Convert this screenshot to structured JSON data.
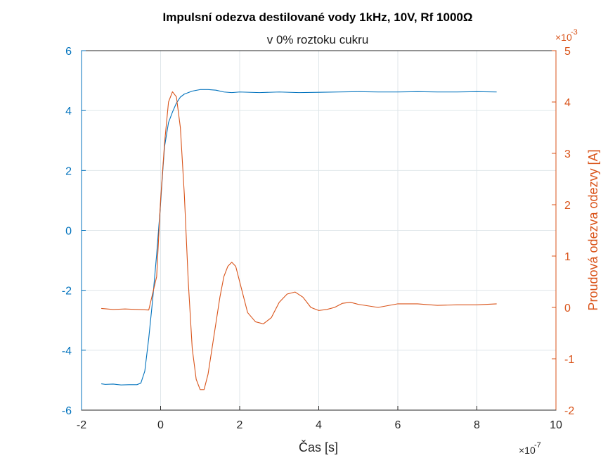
{
  "chart_data": {
    "type": "line",
    "title": "Impulsní odezva destilované vody 1kHz, 10V, Rf 1000Ω",
    "subtitle": "v 0% roztoku cukru",
    "xlabel": "Čas [s]",
    "ylabel_left": "",
    "ylabel_right": "Proudová odezva odezvy [A]",
    "x_exponent_label": "×10",
    "x_exponent_power": "-7",
    "y_right_exponent_label": "×10",
    "y_right_exponent_power": "-3",
    "xlim": [
      -2e-07,
      1e-06
    ],
    "ylim_left": [
      -6,
      6
    ],
    "ylim_right": [
      -0.002,
      0.005
    ],
    "x_tick_labels": [
      "-2",
      "0",
      "2",
      "4",
      "6",
      "8",
      "10"
    ],
    "y_left_tick_labels": [
      "-6",
      "-4",
      "-2",
      "0",
      "2",
      "4",
      "6"
    ],
    "y_right_tick_labels": [
      "-2",
      "-1",
      "0",
      "1",
      "2",
      "3",
      "4",
      "5"
    ],
    "grid": true,
    "colors": {
      "left": "#0072bd",
      "right": "#d95319"
    },
    "series": [
      {
        "axis": "left",
        "color": "#0072bd",
        "x": [
          -1.5e-07,
          -1.4e-07,
          -1.2e-07,
          -1e-07,
          -8e-08,
          -6e-08,
          -5e-08,
          -4e-08,
          -3e-08,
          -2e-08,
          -1e-08,
          0.0,
          5e-09,
          1e-08,
          2e-08,
          3e-08,
          4e-08,
          5e-08,
          6e-08,
          8e-08,
          1e-07,
          1.2e-07,
          1.4e-07,
          1.6e-07,
          1.8e-07,
          2e-07,
          2.5e-07,
          3e-07,
          3.5e-07,
          4e-07,
          4.5e-07,
          5e-07,
          5.5e-07,
          6e-07,
          6.5e-07,
          7e-07,
          7.5e-07,
          8e-07,
          8.5e-07
        ],
        "y": [
          -5.12,
          -5.14,
          -5.13,
          -5.16,
          -5.15,
          -5.15,
          -5.1,
          -4.7,
          -3.6,
          -2.3,
          -0.8,
          0.9,
          1.9,
          2.8,
          3.6,
          3.95,
          4.25,
          4.45,
          4.55,
          4.65,
          4.7,
          4.7,
          4.68,
          4.62,
          4.6,
          4.62,
          4.6,
          4.62,
          4.6,
          4.61,
          4.62,
          4.63,
          4.62,
          4.62,
          4.63,
          4.62,
          4.62,
          4.63,
          4.62
        ]
      },
      {
        "axis": "right",
        "color": "#d95319",
        "x": [
          -1.5e-07,
          -1.2e-07,
          -9e-08,
          -6e-08,
          -3e-08,
          -1e-08,
          0.0,
          1e-08,
          2e-08,
          3e-08,
          4e-08,
          5e-08,
          6e-08,
          7e-08,
          8e-08,
          9e-08,
          1e-07,
          1.1e-07,
          1.2e-07,
          1.3e-07,
          1.4e-07,
          1.5e-07,
          1.6e-07,
          1.7e-07,
          1.8e-07,
          1.9e-07,
          2e-07,
          2.2e-07,
          2.4e-07,
          2.6e-07,
          2.8e-07,
          3e-07,
          3.2e-07,
          3.4e-07,
          3.6e-07,
          3.8e-07,
          4e-07,
          4.2e-07,
          4.4e-07,
          4.6e-07,
          4.8e-07,
          5e-07,
          5.5e-07,
          6e-07,
          6.5e-07,
          7e-07,
          7.5e-07,
          8e-07,
          8.5e-07
        ],
        "y": [
          -2e-05,
          -4e-05,
          -3e-05,
          -4e-05,
          -5e-05,
          0.0006,
          0.0021,
          0.0032,
          0.004,
          0.0042,
          0.0041,
          0.0035,
          0.0022,
          0.0005,
          -0.0008,
          -0.0014,
          -0.0016,
          -0.0016,
          -0.0013,
          -0.0008,
          -0.0003,
          0.0002,
          0.0006,
          0.0008,
          0.00088,
          0.0008,
          0.0005,
          -0.0001,
          -0.00028,
          -0.00032,
          -0.0002,
          0.0001,
          0.00026,
          0.0003,
          0.0002,
          0.0,
          -6e-05,
          -4e-05,
          0.0,
          8e-05,
          0.0001,
          6e-05,
          0.0,
          7e-05,
          7e-05,
          4e-05,
          5e-05,
          5e-05,
          7e-05
        ]
      }
    ]
  }
}
